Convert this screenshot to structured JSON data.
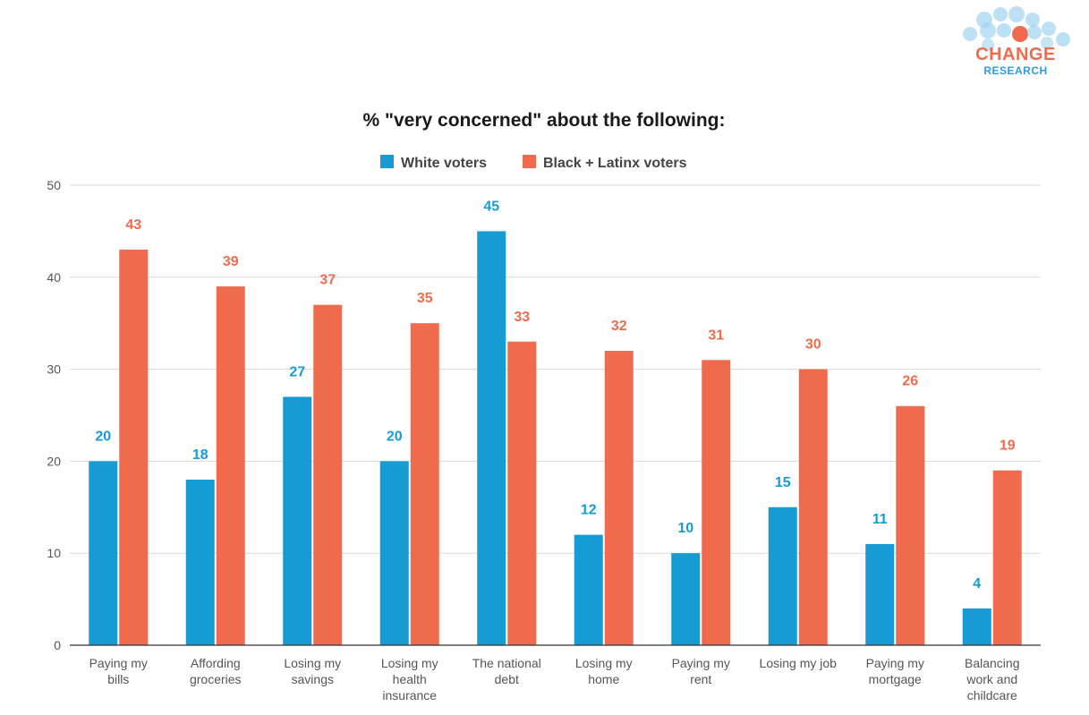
{
  "logo": {
    "line1": "CHANGE",
    "line2": "RESEARCH"
  },
  "chart_data": {
    "type": "bar",
    "title": "% \"very concerned\" about the following:",
    "xlabel": "",
    "ylabel": "",
    "ylim": [
      0,
      50
    ],
    "yticks": [
      0,
      10,
      20,
      30,
      40,
      50
    ],
    "grid": true,
    "legend_position": "top",
    "categories": [
      "Paying my bills",
      "Affording groceries",
      "Losing my savings",
      "Losing my health insurance",
      "The national debt",
      "Losing my home",
      "Paying my rent",
      "Losing my job",
      "Paying my mortgage",
      "Balancing work and childcare"
    ],
    "series": [
      {
        "name": "White voters",
        "color": "#169bd5",
        "values": [
          20,
          18,
          27,
          20,
          45,
          12,
          10,
          15,
          11,
          4
        ]
      },
      {
        "name": "Black + Latinx voters",
        "color": "#f06b4e",
        "values": [
          43,
          39,
          37,
          35,
          33,
          32,
          31,
          30,
          26,
          19
        ]
      }
    ]
  }
}
